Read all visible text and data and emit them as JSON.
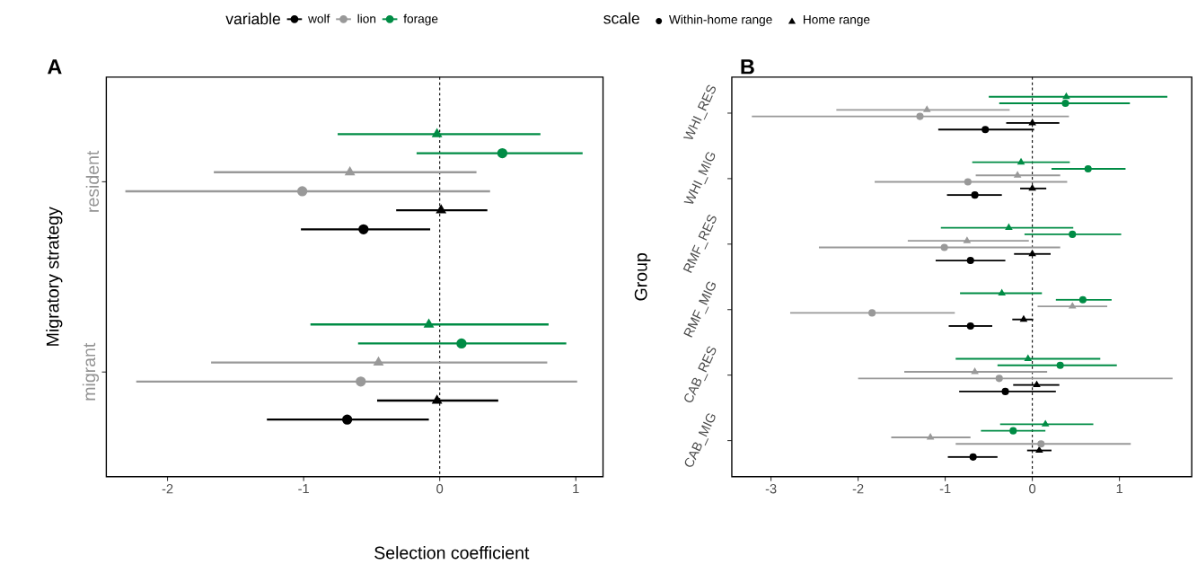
{
  "chart_data": [
    {
      "type": "scatter",
      "orientation": "horizontal",
      "xlabel": "Selection coefficient",
      "ylabel": "Migratory strategy",
      "legend_title": "variable",
      "legend": "top",
      "annotations": [
        "A",
        "scale",
        "Within-home range",
        "Home range"
      ],
      "categories": [
        "resident",
        "migrant"
      ],
      "xlim": [
        -2.45,
        1.2
      ],
      "xticks": [
        -2,
        -1,
        0,
        1
      ],
      "ref_lines": [
        {
          "axis": "x",
          "value": 0,
          "line_style": "dashed"
        }
      ],
      "series": [
        {
          "name": "wolf",
          "color": "#000000",
          "marker": "circle",
          "values": [
            -0.56,
            -0.68
          ],
          "errors": [
            [
              -1.02,
              -0.07
            ],
            [
              -1.27,
              -0.08
            ]
          ]
        },
        {
          "color": "#000000",
          "marker": "triangle",
          "values": [
            0.01,
            -0.02
          ],
          "errors": [
            [
              -0.32,
              0.35
            ],
            [
              -0.46,
              0.43
            ]
          ]
        },
        {
          "name": "lion",
          "color": "#999999",
          "marker": "circle",
          "values": [
            -1.01,
            -0.58
          ],
          "errors": [
            [
              -2.31,
              0.37
            ],
            [
              -2.23,
              1.01
            ]
          ]
        },
        {
          "color": "#999999",
          "marker": "triangle",
          "values": [
            -0.66,
            -0.45
          ],
          "errors": [
            [
              -1.66,
              0.27
            ],
            [
              -1.68,
              0.79
            ]
          ]
        },
        {
          "name": "forage",
          "color": "#008c45",
          "marker": "circle",
          "values": [
            0.46,
            0.16
          ],
          "errors": [
            [
              -0.17,
              1.05
            ],
            [
              -0.6,
              0.93
            ]
          ]
        },
        {
          "color": "#008c45",
          "marker": "triangle",
          "values": [
            -0.02,
            -0.08
          ],
          "errors": [
            [
              -0.75,
              0.74
            ],
            [
              -0.95,
              0.8
            ]
          ]
        }
      ]
    },
    {
      "type": "scatter",
      "orientation": "horizontal",
      "ylabel": "Group",
      "annotations": [
        "B"
      ],
      "categories": [
        "WHI_RES",
        "WHI_MIG",
        "RMF_RES",
        "RMF_MIG",
        "CAB_RES",
        "CAB_MIG"
      ],
      "xlim": [
        -3.45,
        1.83
      ],
      "xticks": [
        -3,
        -2,
        -1,
        0,
        1
      ],
      "ref_lines": [
        {
          "axis": "x",
          "value": 0,
          "line_style": "dashed"
        }
      ],
      "series": [
        {
          "color": "#000000",
          "marker": "circle",
          "values": [
            -0.54,
            -0.66,
            -0.71,
            -0.71,
            -0.31,
            -0.68
          ],
          "errors": [
            [
              -1.08,
              0.02
            ],
            [
              -0.98,
              -0.35
            ],
            [
              -1.11,
              -0.31
            ],
            [
              -0.96,
              -0.46
            ],
            [
              -0.84,
              0.27
            ],
            [
              -0.97,
              -0.4
            ]
          ]
        },
        {
          "color": "#000000",
          "marker": "triangle",
          "values": [
            0.0,
            0.0,
            0.0,
            -0.1,
            0.05,
            0.08
          ],
          "errors": [
            [
              -0.3,
              0.31
            ],
            [
              -0.14,
              0.16
            ],
            [
              -0.21,
              0.21
            ],
            [
              -0.23,
              0.01
            ],
            [
              -0.22,
              0.31
            ],
            [
              -0.06,
              0.22
            ]
          ]
        },
        {
          "color": "#999999",
          "marker": "circle",
          "values": [
            -1.29,
            -0.74,
            -1.01,
            -1.84,
            -0.38,
            0.1
          ],
          "errors": [
            [
              -3.22,
              0.42
            ],
            [
              -1.81,
              0.4
            ],
            [
              -2.45,
              0.32
            ],
            [
              -2.78,
              -0.89
            ],
            [
              -2.0,
              1.61
            ],
            [
              -0.88,
              1.13
            ]
          ]
        },
        {
          "color": "#999999",
          "marker": "triangle",
          "values": [
            -1.21,
            -0.17,
            -0.75,
            0.46,
            -0.66,
            -1.17
          ],
          "errors": [
            [
              -2.25,
              -0.26
            ],
            [
              -0.65,
              0.32
            ],
            [
              -1.43,
              -0.04
            ],
            [
              0.06,
              0.86
            ],
            [
              -1.47,
              0.17
            ],
            [
              -1.62,
              -0.71
            ]
          ]
        },
        {
          "color": "#008c45",
          "marker": "circle",
          "values": [
            0.38,
            0.64,
            0.46,
            0.58,
            0.32,
            -0.22
          ],
          "errors": [
            [
              -0.38,
              1.12
            ],
            [
              0.22,
              1.07
            ],
            [
              -0.09,
              1.02
            ],
            [
              0.27,
              0.91
            ],
            [
              -0.4,
              0.97
            ],
            [
              -0.59,
              0.15
            ]
          ]
        },
        {
          "color": "#008c45",
          "marker": "triangle",
          "values": [
            0.39,
            -0.13,
            -0.27,
            -0.35,
            -0.05,
            0.15
          ],
          "errors": [
            [
              -0.5,
              1.55
            ],
            [
              -0.69,
              0.43
            ],
            [
              -1.05,
              0.47
            ],
            [
              -0.83,
              0.11
            ],
            [
              -0.88,
              0.78
            ],
            [
              -0.37,
              0.7
            ]
          ]
        }
      ]
    }
  ]
}
